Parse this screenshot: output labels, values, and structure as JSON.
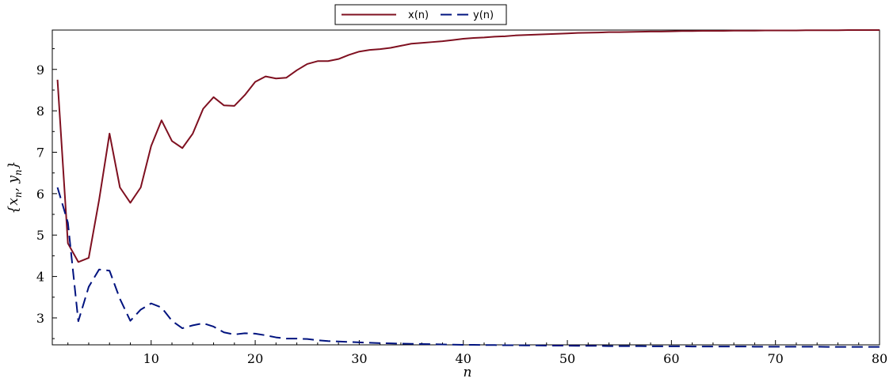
{
  "chart_data": {
    "type": "line",
    "xlabel": "n",
    "ylabel": "{x_n, y_n}",
    "xlim": [
      0.5,
      80
    ],
    "ylim": [
      2.35,
      9.95
    ],
    "xticks": [
      10,
      20,
      30,
      40,
      50,
      60,
      70,
      80
    ],
    "yticks": [
      3,
      4,
      5,
      6,
      7,
      8,
      9
    ],
    "x": [
      1,
      2,
      3,
      4,
      5,
      6,
      7,
      8,
      9,
      10,
      11,
      12,
      13,
      14,
      15,
      16,
      17,
      18,
      19,
      20,
      21,
      22,
      23,
      24,
      25,
      26,
      27,
      28,
      29,
      30,
      31,
      32,
      33,
      34,
      35,
      36,
      37,
      38,
      39,
      40,
      41,
      42,
      43,
      44,
      45,
      46,
      47,
      48,
      49,
      50,
      51,
      52,
      53,
      54,
      55,
      56,
      57,
      58,
      59,
      60,
      61,
      62,
      63,
      64,
      65,
      66,
      67,
      68,
      69,
      70,
      71,
      72,
      73,
      74,
      75,
      76,
      77,
      78,
      79,
      80
    ],
    "series": [
      {
        "name": "x(n)",
        "color": "#7f1020",
        "dash": "solid",
        "values": [
          8.75,
          4.8,
          4.35,
          4.45,
          5.85,
          7.45,
          6.15,
          5.78,
          6.15,
          7.15,
          7.77,
          7.27,
          7.1,
          7.45,
          8.05,
          8.33,
          8.13,
          8.12,
          8.38,
          8.7,
          8.83,
          8.78,
          8.8,
          8.98,
          9.13,
          9.2,
          9.2,
          9.25,
          9.35,
          9.43,
          9.47,
          9.49,
          9.52,
          9.57,
          9.62,
          9.64,
          9.66,
          9.68,
          9.71,
          9.74,
          9.76,
          9.77,
          9.79,
          9.8,
          9.82,
          9.83,
          9.84,
          9.85,
          9.86,
          9.87,
          9.88,
          9.885,
          9.89,
          9.9,
          9.9,
          9.905,
          9.91,
          9.915,
          9.915,
          9.92,
          9.925,
          9.925,
          9.93,
          9.93,
          9.93,
          9.935,
          9.935,
          9.935,
          9.94,
          9.94,
          9.94,
          9.94,
          9.945,
          9.945,
          9.945,
          9.945,
          9.95,
          9.95,
          9.95,
          9.95
        ]
      },
      {
        "name": "y(n)",
        "color": "#00137f",
        "dash": "dashed",
        "values": [
          6.15,
          5.3,
          2.92,
          3.75,
          4.17,
          4.14,
          3.46,
          2.93,
          3.2,
          3.35,
          3.25,
          2.93,
          2.75,
          2.82,
          2.87,
          2.79,
          2.65,
          2.6,
          2.63,
          2.62,
          2.58,
          2.53,
          2.5,
          2.5,
          2.49,
          2.46,
          2.44,
          2.43,
          2.42,
          2.41,
          2.4,
          2.39,
          2.385,
          2.38,
          2.375,
          2.37,
          2.365,
          2.36,
          2.355,
          2.35,
          2.35,
          2.345,
          2.345,
          2.34,
          2.34,
          2.335,
          2.335,
          2.33,
          2.33,
          2.33,
          2.325,
          2.325,
          2.325,
          2.32,
          2.32,
          2.32,
          2.32,
          2.315,
          2.315,
          2.315,
          2.315,
          2.31,
          2.31,
          2.31,
          2.31,
          2.31,
          2.31,
          2.305,
          2.305,
          2.305,
          2.305,
          2.305,
          2.305,
          2.305,
          2.3,
          2.3,
          2.3,
          2.3,
          2.3,
          2.3
        ]
      }
    ],
    "legend": {
      "position": "top-center"
    }
  }
}
